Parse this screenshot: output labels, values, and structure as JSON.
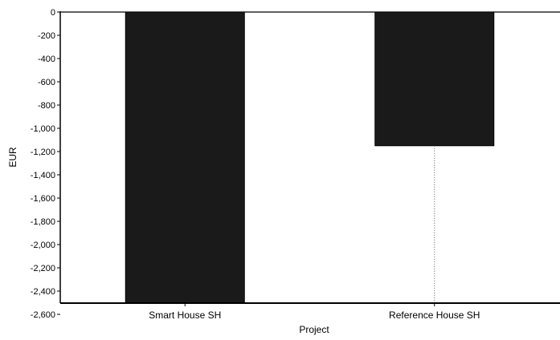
{
  "chart_data": {
    "type": "bar",
    "title": "",
    "xlabel": "Project",
    "ylabel": "EUR",
    "categories": [
      "Smart House SH",
      "Reference House SH"
    ],
    "values": [
      -2500,
      -1150
    ],
    "ylim": [
      -2700,
      0
    ],
    "yticks": [
      0,
      -200,
      -400,
      -600,
      -800,
      -1000,
      -1200,
      -1400,
      -1600,
      -1800,
      -2000,
      -2200,
      -2400,
      -2600
    ],
    "ytick_labels": [
      "0",
      "-200",
      "-400",
      "-600",
      "-800",
      "-1,000",
      "-1,200",
      "-1,400",
      "-1,600",
      "-1,800",
      "-2,000",
      "-2,200",
      "-2,400",
      "-2,600"
    ],
    "grid": false,
    "legend": "none",
    "colors": {
      "bar": "#1a1a1a",
      "axis": "#000000",
      "leader_line": "#555555"
    }
  }
}
